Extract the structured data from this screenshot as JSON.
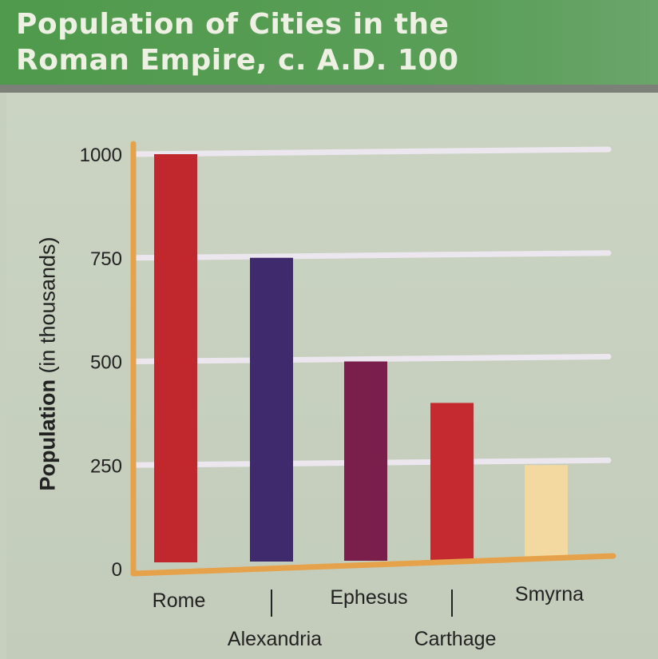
{
  "chart_data": {
    "type": "bar",
    "title": "Population of Cities in the Roman Empire, c. A.D. 100",
    "title_lines": [
      "Population of Cities in the",
      "Roman Empire, c. A.D. 100"
    ],
    "xlabel": "",
    "ylabel": "Population (in thousands)",
    "ylabel_bold": "Population",
    "ylabel_rest": " (in thousands)",
    "categories": [
      "Rome",
      "Alexandria",
      "Ephesus",
      "Carthage",
      "Smyrna"
    ],
    "values": [
      1000,
      750,
      500,
      400,
      250
    ],
    "colors": [
      "#c0282e",
      "#3e2a6c",
      "#7a1f4c",
      "#c42a30",
      "#f3d9a0"
    ],
    "ylim": [
      0,
      1000
    ],
    "yticks": [
      0,
      250,
      500,
      750,
      1000
    ],
    "grid": true,
    "axis_color": "#e6a24a",
    "grid_color": "#ece6ee"
  }
}
